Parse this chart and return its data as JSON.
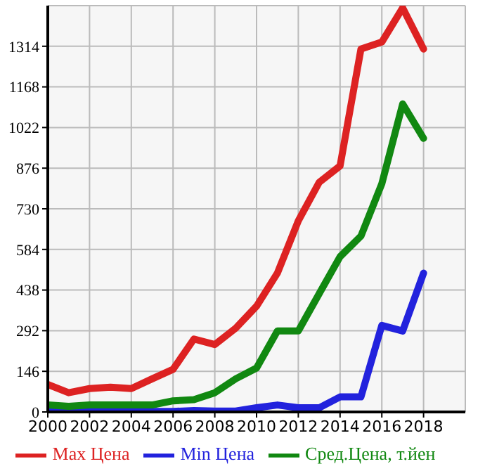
{
  "chart_data": {
    "type": "line",
    "x": [
      2000,
      2001,
      2002,
      2003,
      2004,
      2005,
      2006,
      2007,
      2008,
      2009,
      2010,
      2011,
      2012,
      2013,
      2014,
      2015,
      2016,
      2017,
      2018
    ],
    "series": [
      {
        "name": "Max Цена",
        "color": "#dd2222",
        "values": [
          99,
          69,
          84,
          89,
          84,
          119,
          153,
          262,
          242,
          301,
          380,
          499,
          687,
          825,
          884,
          1304,
          1329,
          1452,
          1304
        ]
      },
      {
        "name": "Min Цена",
        "color": "#2222dd",
        "values": [
          10,
          3,
          8,
          5,
          3,
          2,
          2,
          5,
          3,
          3,
          15,
          25,
          15,
          15,
          54,
          54,
          311,
          291,
          499
        ]
      },
      {
        "name": "Сред.Цена, т.йен",
        "color": "#118811",
        "values": [
          25,
          20,
          25,
          25,
          25,
          25,
          40,
          44,
          69,
          119,
          158,
          291,
          291,
          425,
          558,
          632,
          820,
          1107,
          983
        ]
      }
    ],
    "xlim": [
      2000,
      2020
    ],
    "xticks": [
      2000,
      2002,
      2004,
      2006,
      2008,
      2010,
      2012,
      2014,
      2016,
      2018
    ],
    "ylim": [
      0,
      1460
    ],
    "yticks": [
      0,
      146,
      292,
      438,
      584,
      730,
      876,
      1022,
      1168,
      1314
    ],
    "grid": true,
    "legend": "bottom",
    "marker": "none",
    "line_style": "solid"
  }
}
